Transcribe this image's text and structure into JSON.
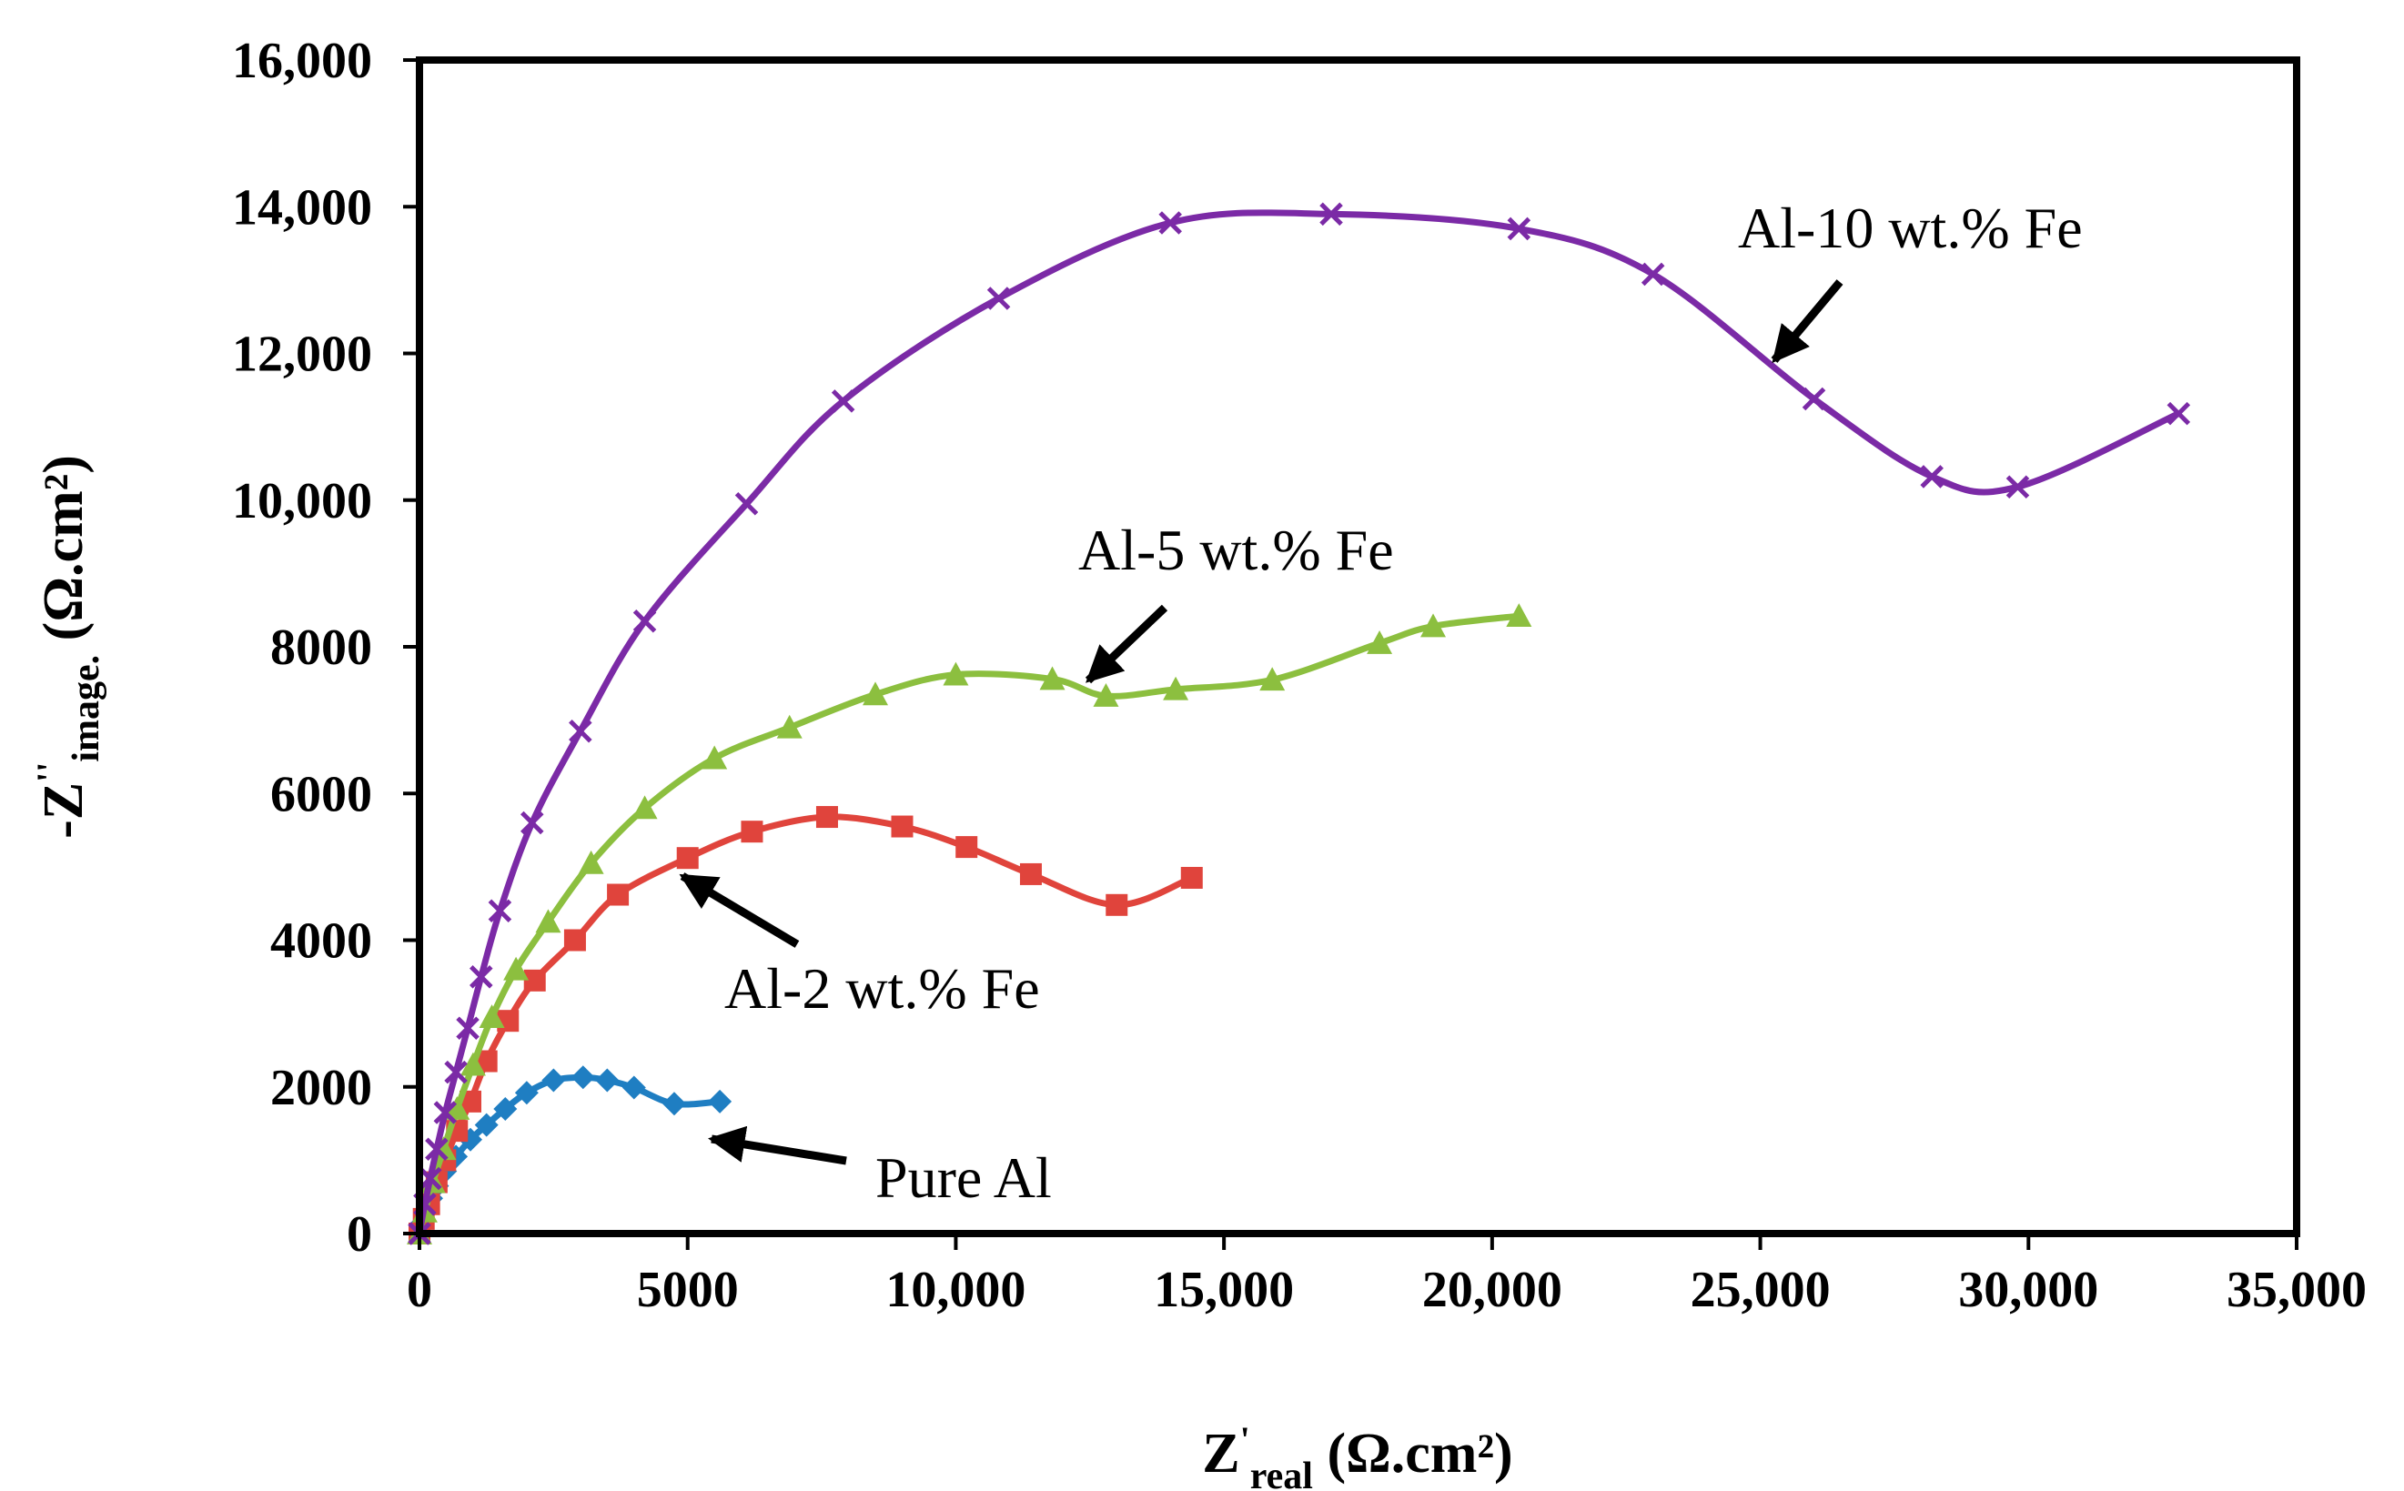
{
  "chart_data": {
    "type": "scatter",
    "title": "",
    "xlabel": {
      "main": "Z",
      "prime": "'",
      "sub": "real",
      "unit": " (Ω.cm²)"
    },
    "ylabel": {
      "main": "-Z",
      "prime": "''",
      "sub": "image.",
      "unit": " (Ω.cm²)"
    },
    "xlim": [
      0,
      35000
    ],
    "ylim": [
      0,
      16000
    ],
    "grid": false,
    "x_tick_values": [
      0,
      5000,
      10000,
      15000,
      20000,
      25000,
      30000,
      35000
    ],
    "x_tick_labels": [
      "0",
      "5000",
      "10,000",
      "15,000",
      "20,000",
      "25,000",
      "30,000",
      "35,000"
    ],
    "y_tick_values": [
      0,
      2000,
      4000,
      6000,
      8000,
      10000,
      12000,
      14000,
      16000
    ],
    "y_tick_labels": [
      "0",
      "2000",
      "4000",
      "6000",
      "8000",
      "10,000",
      "12,000",
      "14,000",
      "16,000"
    ],
    "series": [
      {
        "name": "Pure Al",
        "color": "#1f7ec2",
        "marker": "diamond",
        "x": [
          0,
          60,
          130,
          220,
          330,
          480,
          680,
          950,
          1250,
          1600,
          2000,
          2500,
          3050,
          3500,
          4000,
          4750,
          5600
        ],
        "y": [
          0,
          150,
          300,
          480,
          650,
          850,
          1050,
          1280,
          1480,
          1700,
          1920,
          2090,
          2130,
          2090,
          1990,
          1770,
          1800
        ]
      },
      {
        "name": "Al-2 wt.% Fe",
        "color": "#e0443c",
        "marker": "square",
        "x": [
          0,
          80,
          180,
          320,
          480,
          700,
          950,
          1250,
          1650,
          2150,
          2900,
          3700,
          5000,
          6200,
          7600,
          9000,
          10200,
          11400,
          13000,
          14400
        ],
        "y": [
          0,
          200,
          400,
          700,
          1000,
          1400,
          1800,
          2350,
          2900,
          3450,
          4000,
          4620,
          5120,
          5480,
          5680,
          5550,
          5270,
          4900,
          4480,
          4850
        ]
      },
      {
        "name": "Al-5 wt.% Fe",
        "color": "#8cbf3f",
        "marker": "triangle",
        "x": [
          0,
          100,
          250,
          450,
          700,
          1000,
          1350,
          1800,
          2400,
          3200,
          4200,
          5500,
          6900,
          8500,
          10000,
          11800,
          12800,
          14100,
          15900,
          17900,
          18900,
          20500
        ],
        "y": [
          0,
          300,
          700,
          1150,
          1700,
          2300,
          2950,
          3600,
          4250,
          5050,
          5800,
          6480,
          6900,
          7350,
          7620,
          7560,
          7330,
          7420,
          7550,
          8050,
          8280,
          8420
        ]
      },
      {
        "name": "Al-10 wt.% Fe",
        "color": "#7b2aa6",
        "marker": "x",
        "x": [
          0,
          100,
          200,
          320,
          480,
          680,
          900,
          1150,
          1500,
          2100,
          3000,
          4200,
          6100,
          7900,
          10800,
          14000,
          17000,
          20500,
          23000,
          26000,
          28200,
          29800,
          32800
        ],
        "y": [
          0,
          400,
          750,
          1150,
          1650,
          2200,
          2800,
          3500,
          4400,
          5600,
          6850,
          8350,
          9950,
          11350,
          12750,
          13780,
          13900,
          13700,
          13080,
          11380,
          10320,
          10180,
          11180
        ]
      }
    ],
    "annotations": [
      {
        "text": "Al-10 wt.% Fe",
        "arrow_to_series": "Al-10 wt.% Fe"
      },
      {
        "text": "Al-5 wt.% Fe",
        "arrow_to_series": "Al-5 wt.% Fe"
      },
      {
        "text": "Al-2 wt.% Fe",
        "arrow_to_series": "Al-2 wt.% Fe"
      },
      {
        "text": "Pure Al",
        "arrow_to_series": "Pure Al"
      }
    ]
  }
}
